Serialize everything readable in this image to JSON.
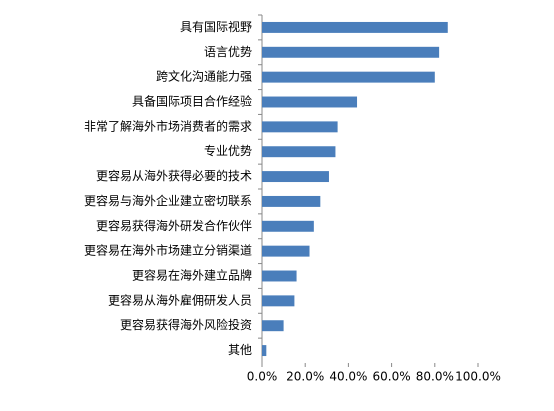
{
  "chart_data": {
    "type": "hbar",
    "categories": [
      "具有国际视野",
      "语言优势",
      "跨文化沟通能力强",
      "具备国际项目合作经验",
      "非常了解海外市场消费者的需求",
      "专业优势",
      "更容易从海外获得必要的技术",
      "更容易与海外企业建立密切联系",
      "更容易获得海外研发合作伙伴",
      "更容易在海外市场建立分销渠道",
      "更容易在海外建立品牌",
      "更容易从海外雇佣研发人员",
      "更容易获得海外风险投资",
      "其他"
    ],
    "values": [
      86,
      82,
      80,
      44,
      35,
      34,
      31,
      27,
      24,
      22,
      16,
      15,
      10,
      2
    ],
    "color": "#4a7ebb",
    "xlim": [
      0,
      100
    ],
    "xticks": [
      {
        "value": 0,
        "label": "0.0%"
      },
      {
        "value": 20,
        "label": "20.0%"
      },
      {
        "value": 40,
        "label": "40.0%"
      },
      {
        "value": 60,
        "label": "60.0%"
      },
      {
        "value": 80,
        "label": "80.0%"
      },
      {
        "value": 100,
        "label": "100.0%"
      }
    ]
  }
}
